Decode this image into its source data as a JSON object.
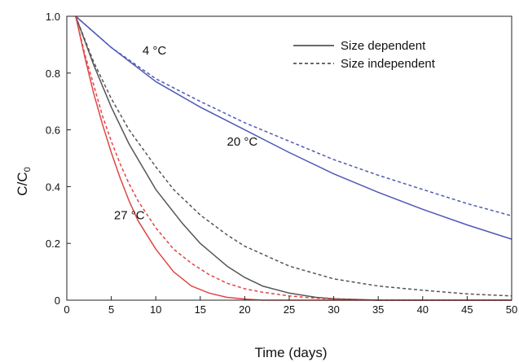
{
  "chart_data": {
    "type": "line",
    "title": "",
    "xlabel": "Time (days)",
    "ylabel_main": "C/C",
    "ylabel_sub": "0",
    "xlim": [
      0,
      50
    ],
    "ylim": [
      0,
      1.0
    ],
    "x_ticks": [
      0,
      5,
      10,
      15,
      20,
      25,
      30,
      35,
      40,
      45,
      50
    ],
    "y_ticks": [
      {
        "value": 0,
        "label": "0"
      },
      {
        "value": 0.2,
        "label": "0.2"
      },
      {
        "value": 0.4,
        "label": "0.4"
      },
      {
        "value": 0.6,
        "label": "0.6"
      },
      {
        "value": 0.8,
        "label": "0.8"
      },
      {
        "value": 1.0,
        "label": "1.0"
      }
    ],
    "grid": false,
    "legend_position": "top-right",
    "legend": [
      {
        "label": "Size dependent",
        "style": "solid"
      },
      {
        "label": "Size independent",
        "style": "dashed"
      }
    ],
    "annotations": [
      {
        "text": "4 °C",
        "x": 8.5,
        "y": 0.865
      },
      {
        "text": "20 °C",
        "x": 18.0,
        "y": 0.545
      },
      {
        "text": "27 °C",
        "x": 5.3,
        "y": 0.285
      }
    ],
    "series": [
      {
        "color": "#5059b5",
        "style": "solid",
        "x": [
          1,
          5,
          10,
          15,
          20,
          25,
          30,
          35,
          40,
          45,
          50
        ],
        "y": [
          1.0,
          0.89,
          0.77,
          0.68,
          0.6,
          0.52,
          0.445,
          0.38,
          0.32,
          0.265,
          0.215
        ]
      },
      {
        "color": "#5059b5",
        "style": "dashed",
        "x": [
          1,
          5,
          10,
          15,
          20,
          25,
          30,
          35,
          40,
          45,
          50
        ],
        "y": [
          1.0,
          0.89,
          0.78,
          0.7,
          0.625,
          0.56,
          0.495,
          0.44,
          0.39,
          0.34,
          0.297
        ]
      },
      {
        "color": "#555555",
        "style": "solid",
        "x": [
          1,
          3,
          5,
          7,
          10,
          13,
          15,
          18,
          20,
          22,
          25,
          28,
          30,
          33,
          35,
          38,
          40,
          45,
          50
        ],
        "y": [
          1.0,
          0.83,
          0.68,
          0.55,
          0.39,
          0.27,
          0.2,
          0.12,
          0.08,
          0.05,
          0.025,
          0.01,
          0.005,
          0.002,
          0.0,
          0.0,
          0.0,
          0.0,
          0.0
        ]
      },
      {
        "color": "#555555",
        "style": "dashed",
        "x": [
          1,
          3,
          5,
          7,
          10,
          12,
          15,
          18,
          20,
          25,
          30,
          35,
          40,
          45,
          50
        ],
        "y": [
          1.0,
          0.84,
          0.71,
          0.6,
          0.47,
          0.39,
          0.3,
          0.23,
          0.19,
          0.12,
          0.075,
          0.05,
          0.035,
          0.022,
          0.015
        ]
      },
      {
        "color": "#e04545",
        "style": "solid",
        "x": [
          1,
          2,
          3,
          4,
          5,
          6,
          7,
          8,
          10,
          12,
          14,
          16,
          18,
          20,
          22,
          25,
          30,
          35,
          40,
          45,
          50
        ],
        "y": [
          1.0,
          0.86,
          0.73,
          0.62,
          0.52,
          0.43,
          0.35,
          0.28,
          0.18,
          0.1,
          0.05,
          0.025,
          0.01,
          0.004,
          0.0,
          0.0,
          0.0,
          0.0,
          0.0,
          0.0,
          0.0
        ]
      },
      {
        "color": "#e04545",
        "style": "dashed",
        "x": [
          1,
          2,
          3,
          4,
          5,
          6,
          7,
          8,
          10,
          12,
          14,
          16,
          18,
          20,
          22,
          25,
          28,
          30,
          35,
          40,
          45,
          50
        ],
        "y": [
          1.0,
          0.87,
          0.76,
          0.65,
          0.56,
          0.48,
          0.41,
          0.35,
          0.255,
          0.18,
          0.13,
          0.09,
          0.06,
          0.04,
          0.028,
          0.015,
          0.007,
          0.004,
          0.0,
          0.0,
          0.0,
          0.0
        ]
      }
    ]
  }
}
